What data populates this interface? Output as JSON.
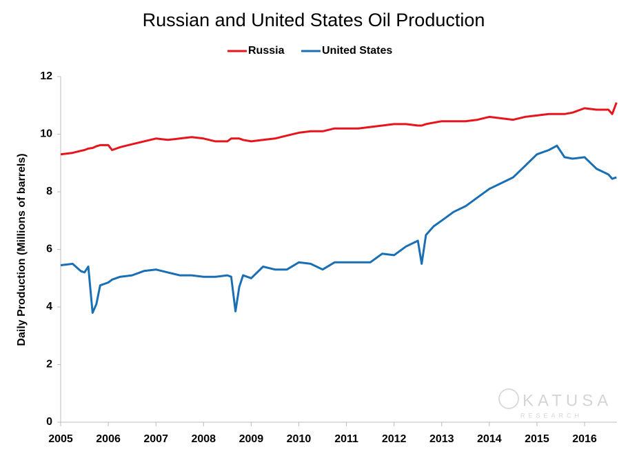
{
  "chart_data": {
    "type": "line",
    "title": "Russian and United States Oil Production",
    "ylabel": "Daily Production  (Millions of barrels)",
    "watermark": {
      "name": "KATUSA",
      "subtitle": "RESEARCH"
    },
    "legend": "top",
    "x": [
      2005,
      2005.25,
      2005.42,
      2005.5,
      2005.58,
      2005.67,
      2005.75,
      2005.83,
      2006,
      2006.08,
      2006.25,
      2006.5,
      2006.75,
      2007,
      2007.25,
      2007.5,
      2007.75,
      2008,
      2008.25,
      2008.5,
      2008.58,
      2008.67,
      2008.75,
      2008.83,
      2009,
      2009.25,
      2009.5,
      2009.75,
      2010,
      2010.25,
      2010.5,
      2010.75,
      2011,
      2011.25,
      2011.5,
      2011.75,
      2012,
      2012.25,
      2012.5,
      2012.58,
      2012.67,
      2012.83,
      2013,
      2013.25,
      2013.5,
      2013.75,
      2014,
      2014.25,
      2014.5,
      2014.75,
      2015,
      2015.25,
      2015.42,
      2015.58,
      2015.75,
      2016,
      2016.25,
      2016.5,
      2016.58,
      2016.67
    ],
    "series": [
      {
        "name": "Russia",
        "color": "#e8141c",
        "values": [
          9.3,
          9.35,
          9.42,
          9.45,
          9.5,
          9.52,
          9.58,
          9.62,
          9.62,
          9.45,
          9.55,
          9.65,
          9.75,
          9.85,
          9.8,
          9.85,
          9.9,
          9.85,
          9.75,
          9.75,
          9.85,
          9.85,
          9.85,
          9.8,
          9.75,
          9.8,
          9.85,
          9.95,
          10.05,
          10.1,
          10.1,
          10.2,
          10.2,
          10.2,
          10.25,
          10.3,
          10.35,
          10.35,
          10.3,
          10.3,
          10.35,
          10.4,
          10.45,
          10.45,
          10.45,
          10.5,
          10.6,
          10.55,
          10.5,
          10.6,
          10.65,
          10.7,
          10.7,
          10.7,
          10.75,
          10.9,
          10.85,
          10.85,
          10.7,
          11.1
        ]
      },
      {
        "name": "United States",
        "color": "#1a6eb4",
        "values": [
          5.45,
          5.5,
          5.25,
          5.2,
          5.4,
          3.8,
          4.1,
          4.75,
          4.85,
          4.95,
          5.05,
          5.1,
          5.25,
          5.3,
          5.2,
          5.1,
          5.1,
          5.05,
          5.05,
          5.1,
          5.05,
          3.85,
          4.7,
          5.1,
          5.0,
          5.4,
          5.3,
          5.3,
          5.55,
          5.5,
          5.3,
          5.55,
          5.55,
          5.55,
          5.55,
          5.85,
          5.8,
          6.1,
          6.3,
          5.5,
          6.5,
          6.8,
          7.0,
          7.3,
          7.5,
          7.8,
          8.1,
          8.3,
          8.5,
          8.9,
          9.3,
          9.45,
          9.6,
          9.2,
          9.15,
          9.2,
          8.8,
          8.6,
          8.45,
          8.5
        ]
      }
    ],
    "xlim": [
      2005,
      2016.68
    ],
    "xticks": [
      2005,
      2006,
      2007,
      2008,
      2009,
      2010,
      2011,
      2012,
      2013,
      2014,
      2015,
      2016
    ],
    "ylim": [
      0,
      12
    ],
    "yticks": [
      0,
      2,
      4,
      6,
      8,
      10,
      12
    ],
    "grid": false
  }
}
